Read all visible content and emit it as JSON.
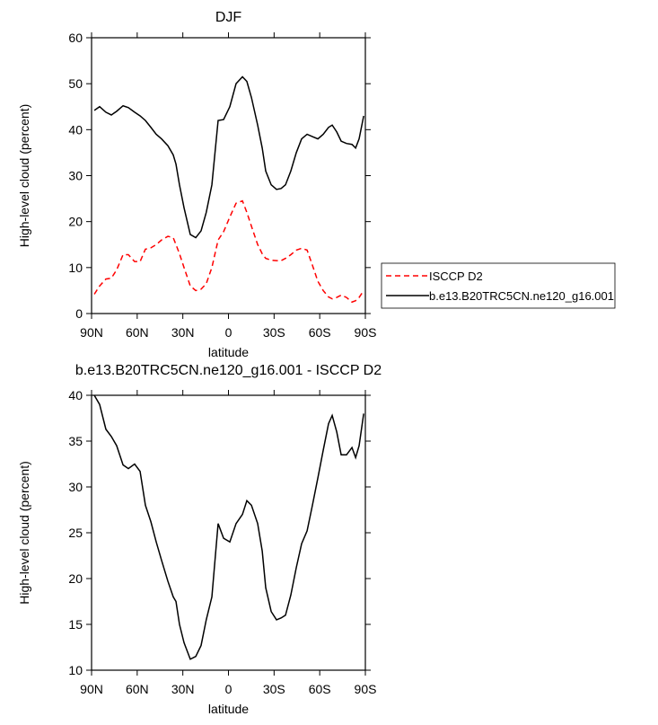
{
  "chart_data": [
    {
      "type": "line",
      "title": "DJF",
      "xlabel": "latitude",
      "ylabel": "High-level cloud (percent)",
      "xlim": [
        90,
        -90
      ],
      "xticks": [
        {
          "value": 90,
          "label": "90N"
        },
        {
          "value": 60,
          "label": "60N"
        },
        {
          "value": 30,
          "label": "30N"
        },
        0,
        {
          "value": -30,
          "label": "30S"
        },
        {
          "value": -60,
          "label": "60S"
        },
        {
          "value": -90,
          "label": "90S"
        }
      ],
      "ylim": [
        0,
        60
      ],
      "yticks": [
        0,
        10,
        20,
        30,
        40,
        50,
        60
      ],
      "legend": "right",
      "x": [
        88.2,
        84.7,
        80.6,
        77,
        73.5,
        69.3,
        65.8,
        61.7,
        58.1,
        54.6,
        51,
        47.5,
        44,
        39.8,
        36.3,
        34.5,
        32.2,
        29.2,
        25.1,
        21.5,
        18,
        14.6,
        10.9,
        6.8,
        3.2,
        -0.9,
        -5,
        -9.2,
        -12.1,
        -15.1,
        -19.2,
        -22.2,
        -24.5,
        -28.1,
        -31.6,
        -34.6,
        -37.5,
        -41,
        -44.6,
        -48.1,
        -51.7,
        -55.2,
        -58.8,
        -62.3,
        -65.8,
        -68.2,
        -71.2,
        -74.1,
        -77.6,
        -81.2,
        -83.6,
        -85.9,
        -88.9
      ],
      "series": [
        {
          "name": "ISCCP D2",
          "color": "#ff0000",
          "line_style": "dashed",
          "values": [
            4.2,
            6,
            7.5,
            7.7,
            9.5,
            12.8,
            12.8,
            11.3,
            11.3,
            14,
            14.3,
            15,
            16,
            16.8,
            16.5,
            15,
            13,
            10,
            6,
            5,
            5.3,
            6.5,
            10,
            16,
            17.8,
            21,
            24,
            24.5,
            22,
            19,
            15,
            13,
            12,
            11.6,
            11.5,
            11.5,
            12,
            12.8,
            13.8,
            14.2,
            13.8,
            10.5,
            7,
            5,
            3.6,
            3.2,
            3.5,
            4,
            3.5,
            2.5,
            2.8,
            3.5,
            5
          ]
        },
        {
          "name": "b.e13.B20TRC5CN.ne120_g16.001",
          "color": "#000000",
          "line_style": "solid",
          "values": [
            44.2,
            45,
            43.8,
            43.2,
            44,
            45.2,
            44.8,
            43.8,
            43,
            42,
            40.5,
            39,
            38,
            36.5,
            34.5,
            32.5,
            28,
            23,
            17.2,
            16.5,
            18,
            22,
            28,
            42,
            42.2,
            45,
            50,
            51.5,
            50.5,
            47,
            41,
            36,
            31,
            28,
            27,
            27.2,
            28,
            31,
            35,
            38,
            39,
            38.5,
            38,
            39,
            40.5,
            41,
            39.5,
            37.5,
            37,
            36.8,
            36,
            38,
            43
          ]
        }
      ]
    },
    {
      "type": "line",
      "title": "b.e13.B20TRC5CN.ne120_g16.001 - ISCCP D2",
      "xlabel": "latitude",
      "ylabel": "High-level cloud (percent)",
      "xlim": [
        90,
        -90
      ],
      "xticks": [
        {
          "value": 90,
          "label": "90N"
        },
        {
          "value": 60,
          "label": "60N"
        },
        {
          "value": 30,
          "label": "30N"
        },
        0,
        {
          "value": -30,
          "label": "30S"
        },
        {
          "value": -60,
          "label": "60S"
        },
        {
          "value": -90,
          "label": "90S"
        }
      ],
      "ylim": [
        10,
        40
      ],
      "yticks": [
        10,
        15,
        20,
        25,
        30,
        35,
        40
      ],
      "x": [
        88.2,
        84.7,
        80.6,
        77,
        73.5,
        69.3,
        65.8,
        61.7,
        58.1,
        54.6,
        51,
        47.5,
        44,
        39.8,
        36.3,
        34.5,
        32.2,
        29.2,
        25.1,
        21.5,
        18,
        14.6,
        10.9,
        6.8,
        3.2,
        -0.9,
        -5,
        -9.2,
        -12.1,
        -15.1,
        -19.2,
        -22.2,
        -24.5,
        -28.1,
        -31.6,
        -34.6,
        -37.5,
        -41,
        -44.6,
        -48.1,
        -51.7,
        -55.2,
        -58.8,
        -62.3,
        -65.8,
        -68.2,
        -71.2,
        -74.1,
        -77.6,
        -81.2,
        -83.6,
        -85.9,
        -88.9
      ],
      "series": [
        {
          "color": "#000000",
          "line_style": "solid",
          "values": [
            40,
            39,
            36.3,
            35.5,
            34.5,
            32.4,
            32,
            32.5,
            31.7,
            28,
            26.2,
            24,
            22,
            19.7,
            18,
            17.5,
            15,
            13,
            11.2,
            11.5,
            12.7,
            15.5,
            18,
            26,
            24.4,
            24,
            26,
            27,
            28.5,
            28,
            26,
            23,
            19,
            16.4,
            15.5,
            15.7,
            16,
            18.2,
            21.2,
            23.8,
            25.2,
            28,
            31,
            34,
            36.9,
            37.8,
            36,
            33.5,
            33.5,
            34.3,
            33.2,
            34.5,
            38
          ]
        }
      ]
    }
  ]
}
